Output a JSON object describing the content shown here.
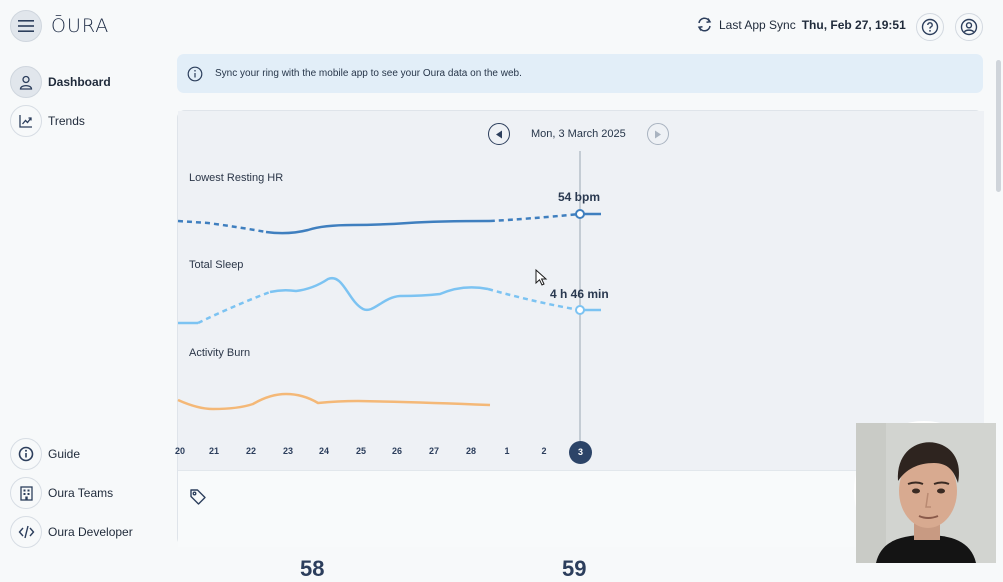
{
  "app": {
    "brand": "ŌURA"
  },
  "header": {
    "sync_label": "Last App Sync",
    "sync_value": "Thu, Feb 27, 19:51"
  },
  "sidebar": {
    "items": [
      {
        "label": "Dashboard",
        "icon": "person-icon",
        "active": true
      },
      {
        "label": "Trends",
        "icon": "trend-chart-icon",
        "active": false
      }
    ],
    "bottom_items": [
      {
        "label": "Guide",
        "icon": "info-icon"
      },
      {
        "label": "Oura Teams",
        "icon": "building-icon"
      },
      {
        "label": "Oura Developer",
        "icon": "code-icon"
      }
    ]
  },
  "banner": {
    "text": "Sync your ring with the mobile app to see your Oura data on the web."
  },
  "card": {
    "date": "Mon, 3 March 2025",
    "metrics": [
      {
        "label": "Lowest Resting HR",
        "value": "54 bpm",
        "color": "#3f7fbf"
      },
      {
        "label": "Total Sleep",
        "value": "4 h 46 min",
        "color": "#7cc3f2"
      },
      {
        "label": "Activity Burn",
        "value": "",
        "color": "#f4b877"
      }
    ],
    "days": [
      "20",
      "21",
      "22",
      "23",
      "24",
      "25",
      "26",
      "27",
      "28",
      "1",
      "2",
      "3"
    ],
    "selected_day": "3"
  },
  "bottom_numbers": [
    "58",
    "59"
  ],
  "colors": {
    "accent": "#2c4468",
    "banner_bg": "#e2eef8"
  }
}
